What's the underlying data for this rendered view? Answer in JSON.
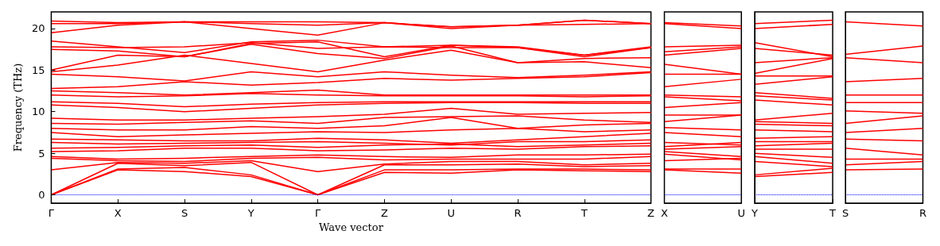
{
  "chart_data": [
    {
      "type": "line",
      "ylabel": "Frequency (THz)",
      "xlabel": "Wave vector",
      "categories": [
        "Γ",
        "X",
        "S",
        "Y",
        "Γ",
        "Z",
        "U",
        "R",
        "T",
        "Z"
      ],
      "ylim": [
        -1,
        22
      ],
      "yticks": [
        0,
        5,
        10,
        15,
        20
      ],
      "line_style": "solid",
      "ref_lines": [
        {
          "axis": "y",
          "value": 0,
          "color": "#0000ff",
          "line_style": "dotted"
        }
      ],
      "series": [
        {
          "color": "#ff0000",
          "values": [
            0,
            3.0,
            2.8,
            2.2,
            0,
            2.7,
            2.6,
            3.0,
            2.9,
            2.8
          ]
        },
        {
          "color": "#ff0000",
          "values": [
            0,
            3.1,
            3.3,
            2.4,
            0,
            3.0,
            3.0,
            3.1,
            3.1,
            3.0
          ]
        },
        {
          "color": "#ff0000",
          "values": [
            0,
            3.8,
            3.5,
            3.9,
            0,
            3.6,
            3.6,
            3.7,
            3.4,
            3.5
          ]
        },
        {
          "color": "#ff0000",
          "values": [
            3.0,
            3.9,
            3.8,
            4.1,
            2.8,
            3.7,
            4.0,
            4.0,
            3.6,
            3.8
          ]
        },
        {
          "color": "#ff0000",
          "values": [
            4.4,
            4.1,
            4.0,
            4.4,
            4.5,
            4.2,
            4.3,
            4.3,
            4.3,
            4.6
          ]
        },
        {
          "color": "#ff0000",
          "values": [
            4.6,
            4.3,
            4.4,
            4.6,
            4.8,
            4.6,
            4.5,
            4.8,
            4.8,
            4.9
          ]
        },
        {
          "color": "#ff0000",
          "values": [
            5.2,
            5.3,
            5.6,
            5.6,
            5.3,
            5.4,
            5.6,
            5.5,
            5.8,
            5.9
          ]
        },
        {
          "color": "#ff0000",
          "values": [
            5.6,
            5.7,
            5.9,
            6.0,
            5.7,
            6.0,
            6.1,
            5.8,
            6.0,
            6.2
          ]
        },
        {
          "color": "#ff0000",
          "values": [
            6.3,
            6.1,
            6.2,
            6.3,
            6.4,
            6.2,
            6.0,
            6.4,
            6.4,
            6.6
          ]
        },
        {
          "color": "#ff0000",
          "values": [
            6.7,
            6.6,
            6.5,
            6.5,
            6.8,
            6.6,
            6.2,
            6.6,
            7.0,
            7.4
          ]
        },
        {
          "color": "#ff0000",
          "values": [
            7.5,
            7.0,
            7.2,
            7.4,
            7.6,
            7.5,
            7.8,
            8.0,
            7.6,
            7.8
          ]
        },
        {
          "color": "#ff0000",
          "values": [
            8.0,
            7.8,
            7.8,
            8.2,
            8.0,
            8.3,
            9.3,
            8.0,
            8.4,
            8.6
          ]
        },
        {
          "color": "#ff0000",
          "values": [
            8.6,
            8.5,
            8.7,
            8.9,
            8.6,
            9.3,
            9.4,
            9.5,
            9.0,
            8.7
          ]
        },
        {
          "color": "#ff0000",
          "values": [
            9.2,
            9.0,
            9.0,
            9.2,
            9.4,
            9.7,
            10.4,
            9.7,
            9.8,
            9.9
          ]
        },
        {
          "color": "#ff0000",
          "values": [
            10.8,
            10.5,
            10.0,
            10.4,
            10.8,
            11.0,
            11.1,
            11.1,
            11.0,
            11.0
          ]
        },
        {
          "color": "#ff0000",
          "values": [
            11.2,
            11.0,
            10.6,
            10.9,
            11.1,
            11.2,
            11.2,
            11.2,
            11.2,
            11.2
          ]
        },
        {
          "color": "#ff0000",
          "values": [
            12.0,
            11.8,
            11.9,
            12.2,
            12.0,
            11.9,
            11.9,
            11.9,
            11.8,
            11.9
          ]
        },
        {
          "color": "#ff0000",
          "values": [
            12.5,
            12.3,
            12.0,
            12.3,
            12.6,
            12.0,
            12.0,
            12.0,
            12.0,
            12.0
          ]
        },
        {
          "color": "#ff0000",
          "values": [
            12.8,
            13.0,
            13.6,
            13.2,
            13.5,
            14.0,
            13.8,
            14.0,
            14.2,
            14.7
          ]
        },
        {
          "color": "#ff0000",
          "values": [
            14.5,
            14.2,
            13.7,
            14.8,
            14.2,
            14.8,
            14.4,
            14.1,
            14.4,
            14.8
          ]
        },
        {
          "color": "#ff0000",
          "values": [
            14.8,
            15.6,
            16.8,
            15.8,
            14.8,
            16.2,
            17.4,
            15.9,
            16.0,
            15.3
          ]
        },
        {
          "color": "#ff0000",
          "values": [
            15.0,
            16.8,
            16.6,
            18.1,
            17.0,
            16.4,
            17.9,
            15.9,
            16.4,
            16.5
          ]
        },
        {
          "color": "#ff0000",
          "values": [
            17.5,
            17.3,
            16.6,
            18.2,
            18.4,
            16.6,
            18.0,
            17.7,
            16.8,
            17.7
          ]
        },
        {
          "color": "#ff0000",
          "values": [
            17.8,
            17.7,
            17.8,
            18.3,
            17.6,
            17.8,
            17.7,
            17.7,
            16.6,
            17.7
          ]
        },
        {
          "color": "#ff0000",
          "values": [
            18.5,
            17.8,
            17.1,
            18.4,
            18.6,
            17.8,
            18.0,
            17.8,
            16.8,
            17.8
          ]
        },
        {
          "color": "#ff0000",
          "values": [
            19.5,
            20.4,
            20.8,
            20.0,
            19.2,
            20.7,
            20.0,
            20.4,
            20.5,
            20.6
          ]
        },
        {
          "color": "#ff0000",
          "values": [
            20.6,
            20.6,
            20.8,
            20.6,
            20.4,
            20.7,
            20.2,
            20.4,
            21.0,
            20.6
          ]
        },
        {
          "color": "#ff0000",
          "values": [
            20.9,
            20.7,
            20.8,
            20.8,
            20.8,
            20.7,
            20.2,
            20.4,
            21.0,
            20.6
          ]
        }
      ]
    },
    {
      "type": "line",
      "categories": [
        "X",
        "U"
      ],
      "ylim": [
        -1,
        22
      ],
      "tick_labels": "x",
      "line_style": "solid",
      "ref_lines": [
        {
          "axis": "y",
          "value": 0,
          "color": "#0000ff",
          "line_style": "dotted"
        }
      ],
      "series": [
        {
          "color": "#ff0000",
          "values": [
            20.7,
            20.3
          ]
        },
        {
          "color": "#ff0000",
          "values": [
            20.6,
            20.0
          ]
        },
        {
          "color": "#ff0000",
          "values": [
            17.8,
            18.0
          ]
        },
        {
          "color": "#ff0000",
          "values": [
            17.2,
            17.8
          ]
        },
        {
          "color": "#ff0000",
          "values": [
            16.8,
            17.6
          ]
        },
        {
          "color": "#ff0000",
          "values": [
            15.7,
            14.5
          ]
        },
        {
          "color": "#ff0000",
          "values": [
            14.5,
            14.5
          ]
        },
        {
          "color": "#ff0000",
          "values": [
            13.0,
            13.9
          ]
        },
        {
          "color": "#ff0000",
          "values": [
            12.0,
            11.8
          ]
        },
        {
          "color": "#ff0000",
          "values": [
            11.8,
            11.3
          ]
        },
        {
          "color": "#ff0000",
          "values": [
            10.5,
            11.1
          ]
        },
        {
          "color": "#ff0000",
          "values": [
            9.6,
            9.6
          ]
        },
        {
          "color": "#ff0000",
          "values": [
            8.8,
            9.6
          ]
        },
        {
          "color": "#ff0000",
          "values": [
            8.1,
            7.8
          ]
        },
        {
          "color": "#ff0000",
          "values": [
            7.5,
            7.0
          ]
        },
        {
          "color": "#ff0000",
          "values": [
            6.3,
            6.0
          ]
        },
        {
          "color": "#ff0000",
          "values": [
            5.8,
            6.3
          ]
        },
        {
          "color": "#ff0000",
          "values": [
            5.5,
            5.8
          ]
        },
        {
          "color": "#ff0000",
          "values": [
            5.2,
            4.6
          ]
        },
        {
          "color": "#ff0000",
          "values": [
            4.9,
            4.2
          ]
        },
        {
          "color": "#ff0000",
          "values": [
            4.1,
            4.4
          ]
        },
        {
          "color": "#ff0000",
          "values": [
            3.1,
            3.1
          ]
        },
        {
          "color": "#ff0000",
          "values": [
            3.0,
            2.6
          ]
        }
      ]
    },
    {
      "type": "line",
      "categories": [
        "Y",
        "T"
      ],
      "ylim": [
        -1,
        22
      ],
      "tick_labels": "x",
      "line_style": "solid",
      "ref_lines": [
        {
          "axis": "y",
          "value": 0,
          "color": "#0000ff",
          "line_style": "dotted"
        }
      ],
      "series": [
        {
          "color": "#ff0000",
          "values": [
            20.6,
            21.0
          ]
        },
        {
          "color": "#ff0000",
          "values": [
            20.0,
            20.5
          ]
        },
        {
          "color": "#ff0000",
          "values": [
            18.3,
            16.6
          ]
        },
        {
          "color": "#ff0000",
          "values": [
            17.6,
            16.8
          ]
        },
        {
          "color": "#ff0000",
          "values": [
            15.9,
            16.5
          ]
        },
        {
          "color": "#ff0000",
          "values": [
            14.6,
            16.4
          ]
        },
        {
          "color": "#ff0000",
          "values": [
            14.3,
            14.3
          ]
        },
        {
          "color": "#ff0000",
          "values": [
            13.3,
            14.2
          ]
        },
        {
          "color": "#ff0000",
          "values": [
            12.3,
            11.6
          ]
        },
        {
          "color": "#ff0000",
          "values": [
            11.9,
            11.4
          ]
        },
        {
          "color": "#ff0000",
          "values": [
            11.4,
            10.8
          ]
        },
        {
          "color": "#ff0000",
          "values": [
            9.0,
            9.8
          ]
        },
        {
          "color": "#ff0000",
          "values": [
            8.8,
            8.6
          ]
        },
        {
          "color": "#ff0000",
          "values": [
            8.5,
            8.3
          ]
        },
        {
          "color": "#ff0000",
          "values": [
            7.8,
            7.6
          ]
        },
        {
          "color": "#ff0000",
          "values": [
            6.8,
            7.0
          ]
        },
        {
          "color": "#ff0000",
          "values": [
            6.4,
            6.4
          ]
        },
        {
          "color": "#ff0000",
          "values": [
            5.9,
            6.2
          ]
        },
        {
          "color": "#ff0000",
          "values": [
            5.5,
            5.5
          ]
        },
        {
          "color": "#ff0000",
          "values": [
            5.0,
            4.5
          ]
        },
        {
          "color": "#ff0000",
          "values": [
            4.6,
            3.8
          ]
        },
        {
          "color": "#ff0000",
          "values": [
            4.0,
            3.4
          ]
        },
        {
          "color": "#ff0000",
          "values": [
            2.4,
            3.2
          ]
        },
        {
          "color": "#ff0000",
          "values": [
            2.2,
            2.7
          ]
        }
      ]
    },
    {
      "type": "line",
      "categories": [
        "S",
        "R"
      ],
      "ylim": [
        -1,
        22
      ],
      "tick_labels": "x",
      "line_style": "solid",
      "ref_lines": [
        {
          "axis": "y",
          "value": 0,
          "color": "#0000ff",
          "line_style": "dotted"
        }
      ],
      "series": [
        {
          "color": "#ff0000",
          "values": [
            20.8,
            20.3
          ]
        },
        {
          "color": "#ff0000",
          "values": [
            16.9,
            17.9
          ]
        },
        {
          "color": "#ff0000",
          "values": [
            16.5,
            15.9
          ]
        },
        {
          "color": "#ff0000",
          "values": [
            13.6,
            14.0
          ]
        },
        {
          "color": "#ff0000",
          "values": [
            12.0,
            12.0
          ]
        },
        {
          "color": "#ff0000",
          "values": [
            11.1,
            11.1
          ]
        },
        {
          "color": "#ff0000",
          "values": [
            10.1,
            9.8
          ]
        },
        {
          "color": "#ff0000",
          "values": [
            8.6,
            9.5
          ]
        },
        {
          "color": "#ff0000",
          "values": [
            7.5,
            8.0
          ]
        },
        {
          "color": "#ff0000",
          "values": [
            6.7,
            6.5
          ]
        },
        {
          "color": "#ff0000",
          "values": [
            5.6,
            4.8
          ]
        },
        {
          "color": "#ff0000",
          "values": [
            4.3,
            4.3
          ]
        },
        {
          "color": "#ff0000",
          "values": [
            3.6,
            4.0
          ]
        },
        {
          "color": "#ff0000",
          "values": [
            3.0,
            3.1
          ]
        }
      ]
    }
  ]
}
